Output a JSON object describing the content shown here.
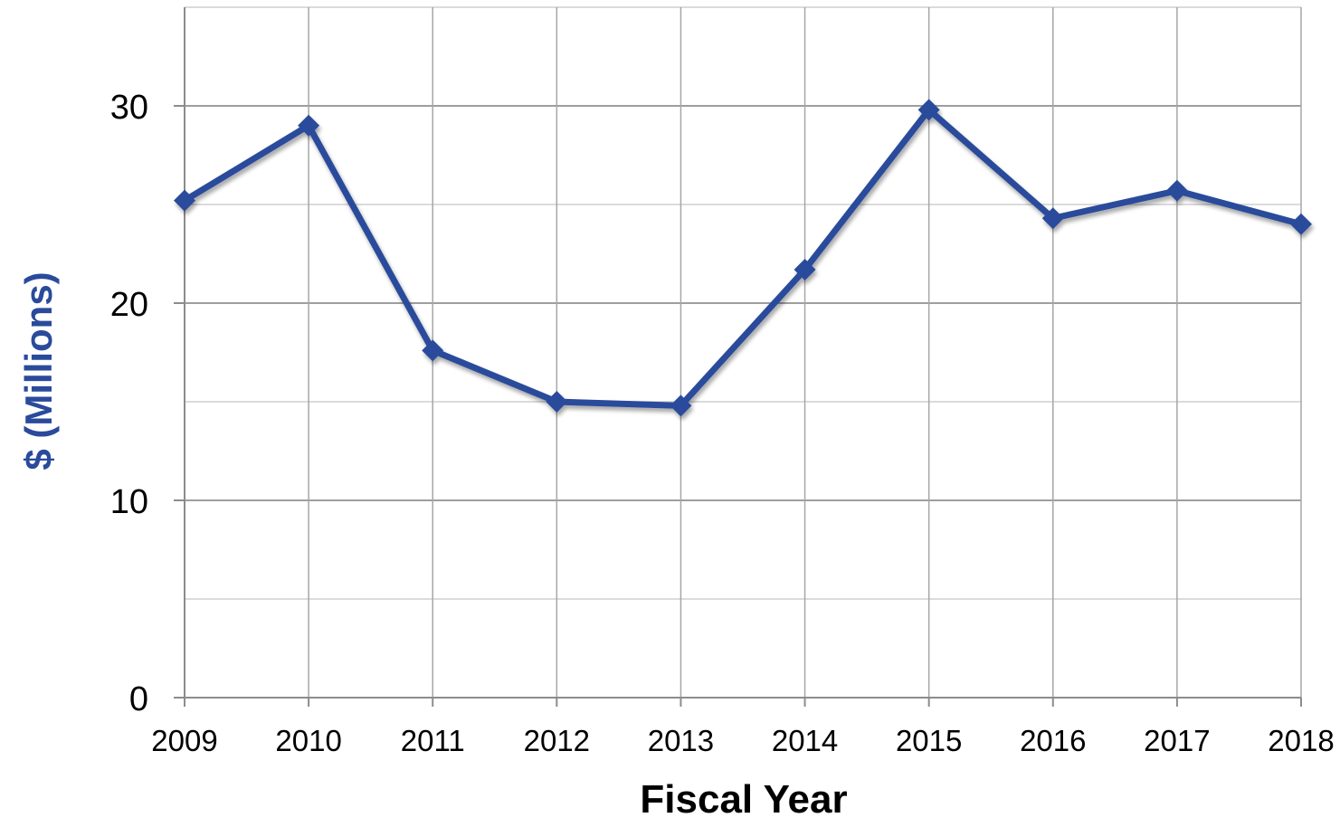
{
  "chart_data": {
    "type": "line",
    "title": "",
    "xlabel": "Fiscal Year",
    "ylabel": "$ (Millions)",
    "categories": [
      "2009",
      "2010",
      "2011",
      "2012",
      "2013",
      "2014",
      "2015",
      "2016",
      "2017",
      "2018"
    ],
    "series": [
      {
        "values": [
          25.2,
          29.0,
          17.6,
          15.0,
          14.8,
          21.7,
          29.8,
          24.3,
          25.7,
          24.0
        ]
      }
    ],
    "ylim": [
      0,
      35
    ],
    "yticks": [
      "0",
      "10",
      "20",
      "30"
    ],
    "grid": true,
    "legend": "none",
    "colors": {
      "line": "#2a4b9b",
      "ylabel": "#2a4b9b",
      "grid": "#b3b3b3",
      "axis": "#8c8c8c",
      "text": "#000000"
    }
  }
}
